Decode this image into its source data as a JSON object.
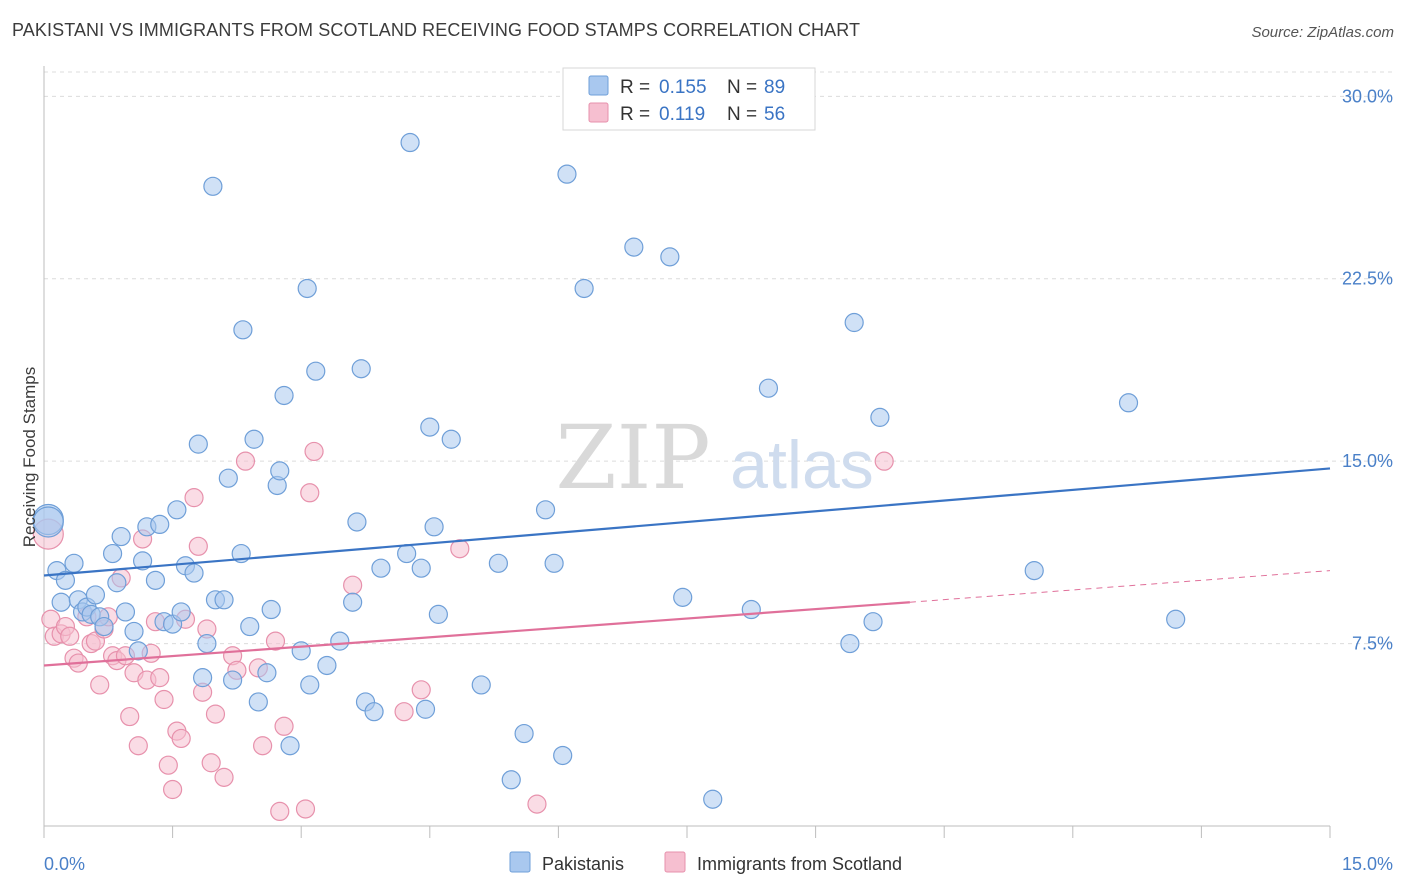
{
  "header": {
    "title": "PAKISTANI VS IMMIGRANTS FROM SCOTLAND RECEIVING FOOD STAMPS CORRELATION CHART",
    "source": "Source: ZipAtlas.com"
  },
  "watermark": {
    "zip": "ZIP",
    "atlas": "atlas"
  },
  "legend": {
    "r_label": "R =",
    "n_label": "N =",
    "series1_r": "0.155",
    "series1_n": "89",
    "series2_r": "0.119",
    "series2_n": "56"
  },
  "colors": {
    "blue_fill": "#a9c8ef",
    "blue_stroke": "#6f9fd8",
    "blue_line": "#3a74c4",
    "pink_fill": "#f6bfd0",
    "pink_stroke": "#e791ac",
    "pink_line": "#e0709a",
    "grid": "#dcdcdc"
  },
  "chart_data": {
    "type": "scatter",
    "title": "PAKISTANI VS IMMIGRANTS FROM SCOTLAND RECEIVING FOOD STAMPS CORRELATION CHART",
    "xlabel": "",
    "ylabel": "Receiving Food Stamps",
    "xlim": [
      0,
      15
    ],
    "ylim": [
      0,
      31
    ],
    "x_tick_labels": [
      "0.0%",
      "15.0%"
    ],
    "y_ticks": [
      7.5,
      15.0,
      22.5,
      30.0
    ],
    "y_tick_labels": [
      "7.5%",
      "15.0%",
      "22.5%",
      "30.0%"
    ],
    "series": [
      {
        "name": "Pakistanis",
        "r": 0.155,
        "n": 89,
        "trend": {
          "x": [
            0,
            15
          ],
          "y": [
            10.3,
            14.7
          ]
        },
        "points": [
          [
            0.05,
            12.6,
            1
          ],
          [
            0.05,
            12.5,
            1
          ],
          [
            0.15,
            10.5,
            0
          ],
          [
            0.2,
            9.2,
            0
          ],
          [
            0.25,
            10.1,
            0
          ],
          [
            0.35,
            10.8,
            0
          ],
          [
            0.4,
            9.3,
            0
          ],
          [
            0.45,
            8.8,
            0
          ],
          [
            0.5,
            9.0,
            0
          ],
          [
            0.55,
            8.7,
            0
          ],
          [
            0.6,
            9.5,
            0
          ],
          [
            0.65,
            8.6,
            0
          ],
          [
            0.7,
            8.2,
            0
          ],
          [
            0.8,
            11.2,
            0
          ],
          [
            0.85,
            10.0,
            0
          ],
          [
            0.9,
            11.9,
            0
          ],
          [
            0.95,
            8.8,
            0
          ],
          [
            1.05,
            8.0,
            0
          ],
          [
            1.1,
            7.2,
            0
          ],
          [
            1.15,
            10.9,
            0
          ],
          [
            1.2,
            12.3,
            0
          ],
          [
            1.3,
            10.1,
            0
          ],
          [
            1.35,
            12.4,
            0
          ],
          [
            1.4,
            8.4,
            0
          ],
          [
            1.5,
            8.3,
            0
          ],
          [
            1.55,
            13.0,
            0
          ],
          [
            1.6,
            8.8,
            0
          ],
          [
            1.65,
            10.7,
            0
          ],
          [
            1.75,
            10.4,
            0
          ],
          [
            1.8,
            15.7,
            0
          ],
          [
            1.85,
            6.1,
            0
          ],
          [
            1.9,
            7.5,
            0
          ],
          [
            1.97,
            26.3,
            0
          ],
          [
            2.0,
            9.3,
            0
          ],
          [
            2.1,
            9.3,
            0
          ],
          [
            2.15,
            14.3,
            0
          ],
          [
            2.2,
            6.0,
            0
          ],
          [
            2.3,
            11.2,
            0
          ],
          [
            2.32,
            20.4,
            0
          ],
          [
            2.4,
            8.2,
            0
          ],
          [
            2.45,
            15.9,
            0
          ],
          [
            2.5,
            5.1,
            0
          ],
          [
            2.6,
            6.3,
            0
          ],
          [
            2.65,
            8.9,
            0
          ],
          [
            2.72,
            14.0,
            0
          ],
          [
            2.75,
            14.6,
            0
          ],
          [
            2.8,
            17.7,
            0
          ],
          [
            2.87,
            3.3,
            0
          ],
          [
            3.0,
            7.2,
            0
          ],
          [
            3.07,
            22.1,
            0
          ],
          [
            3.1,
            5.8,
            0
          ],
          [
            3.17,
            18.7,
            0
          ],
          [
            3.3,
            6.6,
            0
          ],
          [
            3.45,
            7.6,
            0
          ],
          [
            3.6,
            9.2,
            0
          ],
          [
            3.65,
            12.5,
            0
          ],
          [
            3.7,
            18.8,
            0
          ],
          [
            3.75,
            5.1,
            0
          ],
          [
            3.85,
            4.7,
            0
          ],
          [
            3.93,
            10.6,
            0
          ],
          [
            4.23,
            11.2,
            0
          ],
          [
            4.27,
            28.1,
            0
          ],
          [
            4.4,
            10.6,
            0
          ],
          [
            4.45,
            4.8,
            0
          ],
          [
            4.5,
            16.4,
            0
          ],
          [
            4.55,
            12.3,
            0
          ],
          [
            4.6,
            8.7,
            0
          ],
          [
            4.75,
            15.9,
            0
          ],
          [
            5.1,
            5.8,
            0
          ],
          [
            5.3,
            10.8,
            0
          ],
          [
            5.45,
            1.9,
            0
          ],
          [
            5.6,
            3.8,
            0
          ],
          [
            5.85,
            13.0,
            0
          ],
          [
            5.95,
            10.8,
            0
          ],
          [
            6.05,
            2.9,
            0
          ],
          [
            6.1,
            26.8,
            0
          ],
          [
            6.3,
            22.1,
            0
          ],
          [
            6.88,
            23.8,
            0
          ],
          [
            7.3,
            23.4,
            0
          ],
          [
            7.45,
            9.4,
            0
          ],
          [
            7.8,
            1.1,
            0
          ],
          [
            8.25,
            8.9,
            0
          ],
          [
            8.45,
            18.0,
            0
          ],
          [
            9.4,
            7.5,
            0
          ],
          [
            9.45,
            20.7,
            0
          ],
          [
            9.67,
            8.4,
            0
          ],
          [
            9.75,
            16.8,
            0
          ],
          [
            11.55,
            10.5,
            0
          ],
          [
            12.65,
            17.4,
            0
          ],
          [
            13.2,
            8.5,
            0
          ]
        ]
      },
      {
        "name": "Immigrants from Scotland",
        "r": 0.119,
        "n": 56,
        "trend": {
          "x": [
            0,
            10.1
          ],
          "y": [
            6.6,
            9.2
          ],
          "dash_x": [
            10.1,
            15
          ],
          "dash_y": [
            9.2,
            10.5
          ]
        },
        "points": [
          [
            0.05,
            12.0,
            1
          ],
          [
            0.08,
            8.5,
            0
          ],
          [
            0.12,
            7.8,
            0
          ],
          [
            0.2,
            7.9,
            0
          ],
          [
            0.25,
            8.2,
            0
          ],
          [
            0.3,
            7.8,
            0
          ],
          [
            0.35,
            6.9,
            0
          ],
          [
            0.4,
            6.7,
            0
          ],
          [
            0.5,
            8.6,
            0
          ],
          [
            0.55,
            7.5,
            0
          ],
          [
            0.6,
            7.6,
            0
          ],
          [
            0.65,
            5.8,
            0
          ],
          [
            0.7,
            8.1,
            0
          ],
          [
            0.75,
            8.6,
            0
          ],
          [
            0.8,
            7.0,
            0
          ],
          [
            0.85,
            6.8,
            0
          ],
          [
            0.9,
            10.2,
            0
          ],
          [
            0.95,
            7.0,
            0
          ],
          [
            1.0,
            4.5,
            0
          ],
          [
            1.05,
            6.3,
            0
          ],
          [
            1.1,
            3.3,
            0
          ],
          [
            1.15,
            11.8,
            0
          ],
          [
            1.2,
            6.0,
            0
          ],
          [
            1.25,
            7.1,
            0
          ],
          [
            1.3,
            8.4,
            0
          ],
          [
            1.35,
            6.1,
            0
          ],
          [
            1.4,
            5.2,
            0
          ],
          [
            1.45,
            2.5,
            0
          ],
          [
            1.5,
            1.5,
            0
          ],
          [
            1.55,
            3.9,
            0
          ],
          [
            1.6,
            3.6,
            0
          ],
          [
            1.65,
            8.5,
            0
          ],
          [
            1.75,
            13.5,
            0
          ],
          [
            1.8,
            11.5,
            0
          ],
          [
            1.85,
            5.5,
            0
          ],
          [
            1.9,
            8.1,
            0
          ],
          [
            1.95,
            2.6,
            0
          ],
          [
            2.0,
            4.6,
            0
          ],
          [
            2.1,
            2.0,
            0
          ],
          [
            2.2,
            7.0,
            0
          ],
          [
            2.25,
            6.4,
            0
          ],
          [
            2.35,
            15.0,
            0
          ],
          [
            2.5,
            6.5,
            0
          ],
          [
            2.55,
            3.3,
            0
          ],
          [
            2.7,
            7.6,
            0
          ],
          [
            2.75,
            0.6,
            0
          ],
          [
            2.8,
            4.1,
            0
          ],
          [
            3.05,
            0.7,
            0
          ],
          [
            3.1,
            13.7,
            0
          ],
          [
            3.15,
            15.4,
            0
          ],
          [
            3.6,
            9.9,
            0
          ],
          [
            4.2,
            4.7,
            0
          ],
          [
            4.4,
            5.6,
            0
          ],
          [
            4.85,
            11.4,
            0
          ],
          [
            5.75,
            0.9,
            0
          ],
          [
            9.8,
            15.0,
            0
          ]
        ]
      }
    ]
  },
  "bottom_legend": {
    "series1": "Pakistanis",
    "series2": "Immigrants from Scotland"
  }
}
